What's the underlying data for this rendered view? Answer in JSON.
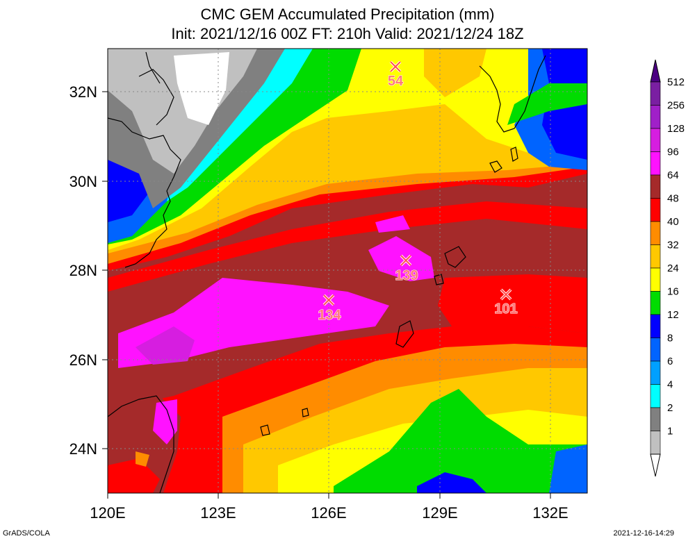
{
  "title": {
    "line1": "CMC GEM Accumulated Precipitation (mm)",
    "line2": "Init: 2021/12/16 00Z  FT: 210h  Valid: 2021/12/24 18Z"
  },
  "axes": {
    "x_ticks": [
      "120E",
      "123E",
      "126E",
      "129E",
      "132E"
    ],
    "y_ticks": [
      "32N",
      "30N",
      "28N",
      "26N",
      "24N"
    ]
  },
  "legend": {
    "levels": [
      {
        "label": "512",
        "color": "#7a1fa2"
      },
      {
        "label": "256",
        "color": "#a020c8"
      },
      {
        "label": "128",
        "color": "#d61ee0"
      },
      {
        "label": "96",
        "color": "#ff12ff"
      },
      {
        "label": "64",
        "color": "#a52a2a"
      },
      {
        "label": "48",
        "color": "#ff0000"
      },
      {
        "label": "40",
        "color": "#ff8c00"
      },
      {
        "label": "32",
        "color": "#ffc800"
      },
      {
        "label": "24",
        "color": "#ffff00"
      },
      {
        "label": "16",
        "color": "#00dc00"
      },
      {
        "label": "12",
        "color": "#0000ff"
      },
      {
        "label": "8",
        "color": "#0064ff"
      },
      {
        "label": "6",
        "color": "#00a0ff"
      },
      {
        "label": "4",
        "color": "#00ffff"
      },
      {
        "label": "2",
        "color": "#808080"
      },
      {
        "label": "1",
        "color": "#c0c0c0"
      }
    ]
  },
  "markers": [
    {
      "value": "54"
    },
    {
      "value": "139"
    },
    {
      "value": "134"
    },
    {
      "value": "101"
    }
  ],
  "footer": {
    "left": "GrADS/COLA",
    "right": "2021-12-16-14:29"
  }
}
